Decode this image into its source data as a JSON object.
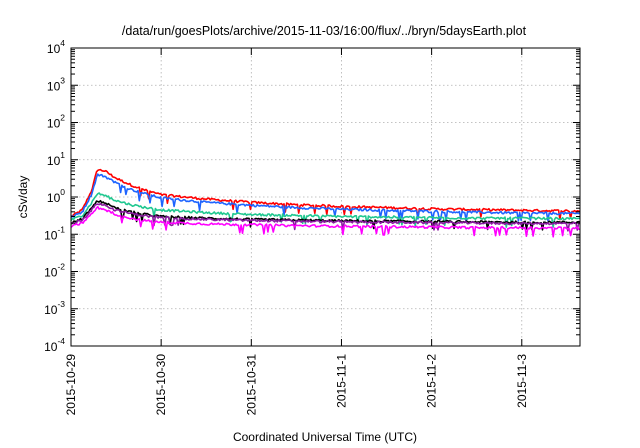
{
  "chart_data": {
    "type": "line",
    "title": "/data/run/goesPlots/archive/2015-11-03/16:00/flux/../bryn/5daysEarth.plot",
    "xlabel": "Coordinated Universal Time (UTC)",
    "ylabel": "cSv/day",
    "yscale": "log",
    "ylim": [
      0.0001,
      10000
    ],
    "xlim": [
      "2015-10-29T00:00",
      "2015-11-03T15:30"
    ],
    "grid": true,
    "x_ticks": [
      "2015-10-29",
      "2015-10-30",
      "2015-10-31",
      "2015-11-1",
      "2015-11-2",
      "2015-11-3"
    ],
    "y_ticks": [
      {
        "base": "10",
        "exp": "-4"
      },
      {
        "base": "10",
        "exp": "-3"
      },
      {
        "base": "10",
        "exp": "-2"
      },
      {
        "base": "10",
        "exp": "-1"
      },
      {
        "base": "10",
        "exp": "0"
      },
      {
        "base": "10",
        "exp": "1"
      },
      {
        "base": "10",
        "exp": "2"
      },
      {
        "base": "10",
        "exp": "3"
      },
      {
        "base": "10",
        "exp": "4"
      }
    ],
    "series": [
      {
        "color": "#ff0000",
        "points": [
          [
            "2015-10-29T00:00",
            0.3
          ],
          [
            "2015-10-29T03:00",
            0.45
          ],
          [
            "2015-10-29T05:30",
            1.5
          ],
          [
            "2015-10-29T07:00",
            5.5
          ],
          [
            "2015-10-29T09:00",
            5.0
          ],
          [
            "2015-10-29T12:00",
            3.2
          ],
          [
            "2015-10-29T16:00",
            2.1
          ],
          [
            "2015-10-29T20:00",
            1.5
          ],
          [
            "2015-10-30T00:00",
            1.15
          ],
          [
            "2015-10-30T12:00",
            0.88
          ],
          [
            "2015-10-31T00:00",
            0.72
          ],
          [
            "2015-10-31T12:00",
            0.62
          ],
          [
            "2015-11-01T00:00",
            0.56
          ],
          [
            "2015-11-01T12:00",
            0.52
          ],
          [
            "2015-11-02T00:00",
            0.48
          ],
          [
            "2015-11-02T12:00",
            0.46
          ],
          [
            "2015-11-03T00:00",
            0.44
          ],
          [
            "2015-11-03T15:30",
            0.42
          ]
        ]
      },
      {
        "color": "#1e64ff",
        "points": [
          [
            "2015-10-29T00:00",
            0.28
          ],
          [
            "2015-10-29T03:00",
            0.4
          ],
          [
            "2015-10-29T05:30",
            1.2
          ],
          [
            "2015-10-29T07:00",
            4.0
          ],
          [
            "2015-10-29T09:00",
            3.6
          ],
          [
            "2015-10-29T12:00",
            2.4
          ],
          [
            "2015-10-29T16:00",
            1.6
          ],
          [
            "2015-10-29T20:00",
            1.2
          ],
          [
            "2015-10-30T00:00",
            0.95
          ],
          [
            "2015-10-30T12:00",
            0.72
          ],
          [
            "2015-10-31T00:00",
            0.6
          ],
          [
            "2015-10-31T12:00",
            0.52
          ],
          [
            "2015-11-01T00:00",
            0.47
          ],
          [
            "2015-11-01T12:00",
            0.44
          ],
          [
            "2015-11-02T00:00",
            0.41
          ],
          [
            "2015-11-02T12:00",
            0.39
          ],
          [
            "2015-11-03T00:00",
            0.37
          ],
          [
            "2015-11-03T15:30",
            0.36
          ]
        ]
      },
      {
        "color": "#20c890",
        "points": [
          [
            "2015-10-29T00:00",
            0.24
          ],
          [
            "2015-10-29T03:00",
            0.32
          ],
          [
            "2015-10-29T05:30",
            0.7
          ],
          [
            "2015-10-29T07:00",
            1.25
          ],
          [
            "2015-10-29T09:00",
            1.1
          ],
          [
            "2015-10-29T12:00",
            0.8
          ],
          [
            "2015-10-29T16:00",
            0.62
          ],
          [
            "2015-10-29T20:00",
            0.52
          ],
          [
            "2015-10-30T00:00",
            0.45
          ],
          [
            "2015-10-30T12:00",
            0.38
          ],
          [
            "2015-10-31T00:00",
            0.34
          ],
          [
            "2015-10-31T12:00",
            0.32
          ],
          [
            "2015-11-01T00:00",
            0.3
          ],
          [
            "2015-11-01T12:00",
            0.29
          ],
          [
            "2015-11-02T00:00",
            0.28
          ],
          [
            "2015-11-02T12:00",
            0.27
          ],
          [
            "2015-11-03T00:00",
            0.27
          ],
          [
            "2015-11-03T15:30",
            0.26
          ]
        ]
      },
      {
        "color": "#000000",
        "points": [
          [
            "2015-10-29T00:00",
            0.2
          ],
          [
            "2015-10-29T03:00",
            0.26
          ],
          [
            "2015-10-29T05:30",
            0.5
          ],
          [
            "2015-10-29T07:00",
            0.78
          ],
          [
            "2015-10-29T09:00",
            0.7
          ],
          [
            "2015-10-29T12:00",
            0.5
          ],
          [
            "2015-10-29T16:00",
            0.4
          ],
          [
            "2015-10-29T20:00",
            0.34
          ],
          [
            "2015-10-30T00:00",
            0.3
          ],
          [
            "2015-10-30T12:00",
            0.27
          ],
          [
            "2015-10-31T00:00",
            0.25
          ],
          [
            "2015-10-31T12:00",
            0.24
          ],
          [
            "2015-11-01T00:00",
            0.23
          ],
          [
            "2015-11-01T12:00",
            0.225
          ],
          [
            "2015-11-02T00:00",
            0.22
          ],
          [
            "2015-11-02T12:00",
            0.215
          ],
          [
            "2015-11-03T00:00",
            0.21
          ],
          [
            "2015-11-03T15:30",
            0.21
          ]
        ]
      },
      {
        "color": "#8a1aa0",
        "points": [
          [
            "2015-10-29T00:00",
            0.19
          ],
          [
            "2015-10-29T03:00",
            0.24
          ],
          [
            "2015-10-29T05:30",
            0.45
          ],
          [
            "2015-10-29T07:00",
            0.68
          ],
          [
            "2015-10-29T09:00",
            0.6
          ],
          [
            "2015-10-29T12:00",
            0.44
          ],
          [
            "2015-10-29T16:00",
            0.36
          ],
          [
            "2015-10-29T20:00",
            0.31
          ],
          [
            "2015-10-30T00:00",
            0.28
          ],
          [
            "2015-10-30T12:00",
            0.25
          ],
          [
            "2015-10-31T00:00",
            0.235
          ],
          [
            "2015-10-31T12:00",
            0.225
          ],
          [
            "2015-11-01T00:00",
            0.215
          ],
          [
            "2015-11-01T12:00",
            0.21
          ],
          [
            "2015-11-02T00:00",
            0.205
          ],
          [
            "2015-11-02T12:00",
            0.2
          ],
          [
            "2015-11-03T00:00",
            0.195
          ],
          [
            "2015-11-03T15:30",
            0.195
          ]
        ]
      },
      {
        "color": "#ff00ff",
        "points": [
          [
            "2015-10-29T00:00",
            0.16
          ],
          [
            "2015-10-29T03:00",
            0.2
          ],
          [
            "2015-10-29T05:30",
            0.35
          ],
          [
            "2015-10-29T07:00",
            0.52
          ],
          [
            "2015-10-29T09:00",
            0.46
          ],
          [
            "2015-10-29T12:00",
            0.34
          ],
          [
            "2015-10-29T16:00",
            0.27
          ],
          [
            "2015-10-29T20:00",
            0.23
          ],
          [
            "2015-10-30T00:00",
            0.21
          ],
          [
            "2015-10-30T12:00",
            0.19
          ],
          [
            "2015-10-31T00:00",
            0.18
          ],
          [
            "2015-10-31T12:00",
            0.17
          ],
          [
            "2015-11-01T00:00",
            0.165
          ],
          [
            "2015-11-01T12:00",
            0.16
          ],
          [
            "2015-11-02T00:00",
            0.155
          ],
          [
            "2015-11-02T12:00",
            0.15
          ],
          [
            "2015-11-03T00:00",
            0.15
          ],
          [
            "2015-11-03T15:30",
            0.145
          ]
        ]
      }
    ]
  }
}
